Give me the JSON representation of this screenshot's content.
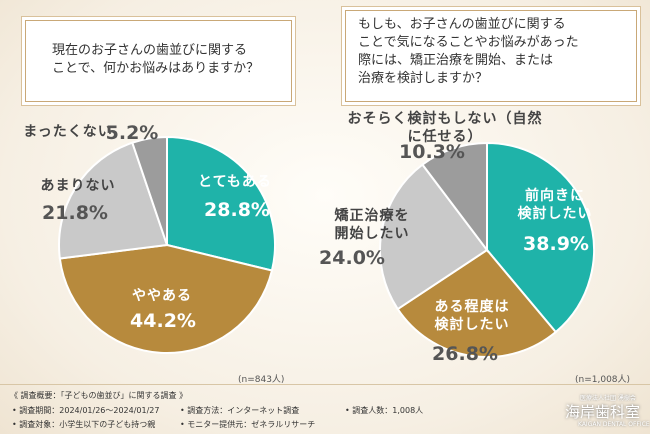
{
  "chart_data": [
    {
      "type": "pie",
      "title": "現在のお子さんの歯並びに関する\nことで、何かお悩みはありますか？",
      "categories": [
        "とてもある",
        "ややある",
        "あまりない",
        "まったくない"
      ],
      "values": [
        28.8,
        44.2,
        21.8,
        5.2
      ],
      "value_labels": [
        "28.8%",
        "44.2%",
        "21.8%",
        "5.2%"
      ],
      "colors": [
        "#1fb3a9",
        "#b78a3d",
        "#c9c9c9",
        "#9c9c9c"
      ],
      "note": "(n=843人)"
    },
    {
      "type": "pie",
      "title": "もしも、お子さんの歯並びに関する\nことで気になることやお悩みがあった\n際には、矯正治療を開始、または\n治療を検討しますか？",
      "categories": [
        "前向きに\n検討したい",
        "ある程度は\n検討したい",
        "矯正治療を\n開始したい",
        "おそらく検討もしない（自然に任せる）"
      ],
      "values": [
        38.9,
        26.8,
        24.0,
        10.3
      ],
      "value_labels": [
        "38.9%",
        "26.8%",
        "24.0%",
        "10.3%"
      ],
      "colors": [
        "#1fb3a9",
        "#b78a3d",
        "#c9c9c9",
        "#9c9c9c"
      ],
      "note": "(n=1,008人)"
    }
  ],
  "footer": {
    "heading": "《 調査概要：「子どもの歯並び」に関する調査 》",
    "items": [
      "• 調査期間：2024/01/26〜2024/01/27",
      "• 調査方法：インターネット調査",
      "• 調査人数：1,008人",
      "• 調査対象：小学生以下の子ども持つ親",
      "• モニター提供元：ゼネラルリサーチ"
    ]
  },
  "logo": {
    "org": "医療法人社団 湧樹会",
    "name": "海岸歯科室",
    "english": "KAIGAN DENTAL OFFICE"
  }
}
